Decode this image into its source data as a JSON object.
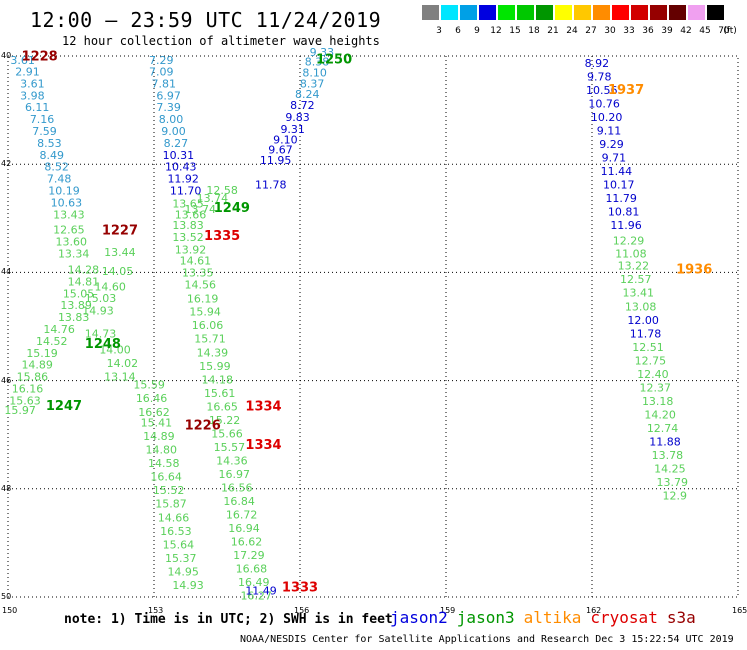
{
  "header": {
    "title": "12:00 — 23:59 UTC 11/24/2019",
    "subtitle": "12 hour collection of altimeter wave heights"
  },
  "legend": {
    "unit": "(ft)",
    "bins": [
      {
        "label": "3",
        "color": "#808080"
      },
      {
        "label": "6",
        "color": "#00e6ff"
      },
      {
        "label": "9",
        "color": "#00a0e6"
      },
      {
        "label": "12",
        "color": "#0000e0"
      },
      {
        "label": "15",
        "color": "#00e600"
      },
      {
        "label": "18",
        "color": "#00c800"
      },
      {
        "label": "21",
        "color": "#009600"
      },
      {
        "label": "24",
        "color": "#ffff00"
      },
      {
        "label": "27",
        "color": "#ffc800"
      },
      {
        "label": "30",
        "color": "#ff8c00"
      },
      {
        "label": "33",
        "color": "#ff0000"
      },
      {
        "label": "36",
        "color": "#d20000"
      },
      {
        "label": "39",
        "color": "#960000"
      },
      {
        "label": "42",
        "color": "#640000"
      },
      {
        "label": "45",
        "color": "#f0a0f0"
      },
      {
        "label": "70",
        "color": "#000000"
      }
    ]
  },
  "axes": {
    "lon_labels": [
      "150",
      "153",
      "156",
      "159",
      "162",
      "165"
    ],
    "lat_labels": [
      "40",
      "42",
      "44",
      "46",
      "48",
      "50"
    ]
  },
  "footer": {
    "note": "note: 1) Time is in UTC; 2) SWH is in feet",
    "satellites": [
      {
        "name": "jason2",
        "color": "#0000dd"
      },
      {
        "name": "jason3",
        "color": "#009600"
      },
      {
        "name": "altika",
        "color": "#ff8c00"
      },
      {
        "name": "cryosat",
        "color": "#dd0000"
      },
      {
        "name": "s3a",
        "color": "#960000"
      }
    ],
    "credit": "NOAA/NESDIS Center for Satellite Applications and Research   Dec  3 15:22:54 UTC 2019"
  },
  "tracks": [
    {
      "color": "#3399cc",
      "points": [
        [
          150.3,
          40.15,
          "3.61"
        ],
        [
          150.4,
          40.36,
          "2.91"
        ],
        [
          150.5,
          40.58,
          "3.61"
        ],
        [
          150.5,
          40.8,
          "3.98"
        ],
        [
          150.6,
          41.02,
          "6.11"
        ],
        [
          150.7,
          41.24,
          "7.16"
        ],
        [
          150.75,
          41.46,
          "7.59"
        ],
        [
          150.85,
          41.68,
          "8.53"
        ],
        [
          150.9,
          41.9,
          "8.49"
        ],
        [
          151.0,
          42.12,
          "8.52"
        ],
        [
          151.05,
          42.34,
          "7.48"
        ],
        [
          151.15,
          42.56,
          "10.19"
        ],
        [
          151.2,
          42.78,
          "10.63"
        ]
      ]
    },
    {
      "color": "#5ad05a",
      "points": [
        [
          151.25,
          43.0,
          "13.43"
        ],
        [
          151.25,
          43.28,
          "12.65"
        ],
        [
          151.3,
          43.5,
          "13.60"
        ],
        [
          151.35,
          43.72,
          "13.34"
        ],
        [
          151.55,
          44.02,
          "14.28"
        ],
        [
          151.55,
          44.24,
          "14.81"
        ],
        [
          151.45,
          44.46,
          "15.05"
        ],
        [
          151.4,
          44.68,
          "13.89"
        ],
        [
          151.35,
          44.9,
          "13.83"
        ],
        [
          151.05,
          45.12,
          "14.76"
        ],
        [
          150.9,
          45.34,
          "14.52"
        ],
        [
          150.7,
          45.56,
          "15.19"
        ],
        [
          150.6,
          45.78,
          "14.89"
        ],
        [
          150.5,
          46.0,
          "15.86"
        ],
        [
          150.4,
          46.22,
          "16.16"
        ],
        [
          150.35,
          46.44,
          "15.63"
        ],
        [
          150.25,
          46.62,
          "15.97"
        ]
      ]
    },
    {
      "color": "#5ad05a",
      "points": [
        [
          152.3,
          43.7,
          "13.44"
        ],
        [
          152.25,
          44.05,
          "14.05"
        ],
        [
          152.1,
          44.33,
          "14.60"
        ],
        [
          151.9,
          44.55,
          "15.03"
        ],
        [
          151.85,
          44.78,
          "14.93"
        ],
        [
          151.9,
          45.2,
          "14.73"
        ],
        [
          152.2,
          45.5,
          "14.00"
        ],
        [
          152.35,
          45.75,
          "14.02"
        ],
        [
          152.3,
          46.0,
          "13.14"
        ]
      ]
    },
    {
      "color": "#3399cc",
      "points": [
        [
          153.15,
          40.15,
          "7.29"
        ],
        [
          153.15,
          40.36,
          "7.09"
        ],
        [
          153.2,
          40.58,
          "7.81"
        ],
        [
          153.3,
          40.8,
          "6.97"
        ],
        [
          153.3,
          41.02,
          "7.39"
        ],
        [
          153.35,
          41.24,
          "8.00"
        ],
        [
          153.4,
          41.46,
          "9.00"
        ],
        [
          153.45,
          41.68,
          "8.27"
        ]
      ]
    },
    {
      "color": "#0000cc",
      "points": [
        [
          153.5,
          41.9,
          "10.31"
        ],
        [
          153.55,
          42.12,
          "10.43"
        ],
        [
          153.6,
          42.34,
          "11.92"
        ],
        [
          153.65,
          42.56,
          "11.70"
        ]
      ]
    },
    {
      "color": "#5ad05a",
      "points": [
        [
          153.7,
          42.8,
          "13.65"
        ],
        [
          153.75,
          43.0,
          "13.66"
        ],
        [
          153.7,
          43.2,
          "13.83"
        ],
        [
          153.7,
          43.42,
          "13.52"
        ],
        [
          153.75,
          43.65,
          "13.92"
        ],
        [
          153.85,
          43.85,
          "14.61"
        ],
        [
          153.9,
          44.08,
          "13.35"
        ],
        [
          153.95,
          44.3,
          "14.56"
        ],
        [
          154.0,
          44.56,
          "16.19"
        ],
        [
          154.05,
          44.8,
          "15.94"
        ],
        [
          154.1,
          45.05,
          "16.06"
        ],
        [
          154.15,
          45.3,
          "15.71"
        ],
        [
          154.2,
          45.55,
          "14.39"
        ],
        [
          154.25,
          45.8,
          "15.99"
        ],
        [
          154.3,
          46.05,
          "14.18"
        ],
        [
          154.35,
          46.3,
          "15.61"
        ],
        [
          154.4,
          46.55,
          "16.65"
        ],
        [
          154.45,
          46.8,
          "15.22"
        ],
        [
          154.5,
          47.05,
          "15.66"
        ],
        [
          154.55,
          47.3,
          "15.57"
        ],
        [
          154.6,
          47.55,
          "14.36"
        ],
        [
          154.65,
          47.8,
          "16.97"
        ],
        [
          154.7,
          48.05,
          "16.56"
        ],
        [
          154.75,
          48.3,
          "16.84"
        ],
        [
          154.8,
          48.55,
          "16.72"
        ],
        [
          154.85,
          48.8,
          "16.94"
        ],
        [
          154.9,
          49.05,
          "16.62"
        ],
        [
          154.95,
          49.3,
          "17.29"
        ],
        [
          155.0,
          49.55,
          "16.68"
        ],
        [
          155.05,
          49.8,
          "16.49"
        ],
        [
          155.1,
          50.05,
          "16.27"
        ]
      ]
    },
    {
      "color": "#5ad05a",
      "points": [
        [
          152.9,
          46.15,
          "15.59"
        ],
        [
          152.95,
          46.4,
          "16.46"
        ],
        [
          153.0,
          46.65,
          "16.62"
        ],
        [
          153.05,
          46.85,
          "15.41"
        ],
        [
          153.1,
          47.1,
          "14.89"
        ],
        [
          153.15,
          47.35,
          "14.80"
        ],
        [
          153.2,
          47.6,
          "14.58"
        ],
        [
          153.25,
          47.85,
          "16.64"
        ],
        [
          153.3,
          48.1,
          "15.52"
        ],
        [
          153.35,
          48.35,
          "15.87"
        ],
        [
          153.4,
          48.6,
          "14.66"
        ],
        [
          153.45,
          48.85,
          "16.53"
        ],
        [
          153.5,
          49.1,
          "15.64"
        ],
        [
          153.55,
          49.35,
          "15.37"
        ],
        [
          153.6,
          49.6,
          "14.95"
        ],
        [
          153.7,
          49.85,
          "14.93"
        ]
      ]
    },
    {
      "color": "#0000cc",
      "points": [
        [
          155.2,
          49.95,
          "11.49"
        ]
      ]
    },
    {
      "color": "#5ad05a",
      "points": [
        [
          154.4,
          42.55,
          "12.58"
        ],
        [
          154.2,
          42.7,
          "13.74"
        ],
        [
          153.95,
          42.9,
          "13.74"
        ]
      ]
    },
    {
      "color": "#0000cc",
      "points": [
        [
          155.4,
          42.45,
          "11.78"
        ],
        [
          155.5,
          42.0,
          "11.95"
        ],
        [
          155.6,
          41.8,
          "9.67"
        ],
        [
          155.7,
          41.62,
          "9.10"
        ],
        [
          155.85,
          41.42,
          "9.31"
        ],
        [
          155.95,
          41.2,
          "9.83"
        ],
        [
          156.05,
          40.98,
          "8.72"
        ]
      ]
    },
    {
      "color": "#3399cc",
      "points": [
        [
          156.15,
          40.78,
          "8.24"
        ],
        [
          156.25,
          40.58,
          "8.37"
        ],
        [
          156.3,
          40.38,
          "8.10"
        ],
        [
          156.35,
          40.18,
          "8.38"
        ],
        [
          156.45,
          40.0,
          "9.33"
        ]
      ]
    },
    {
      "color": "#0000cc",
      "points": [
        [
          162.1,
          40.2,
          "8.92"
        ],
        [
          162.15,
          40.45,
          "9.78"
        ],
        [
          162.2,
          40.7,
          "10.56"
        ],
        [
          162.25,
          40.95,
          "10.76"
        ],
        [
          162.3,
          41.2,
          "10.20"
        ],
        [
          162.35,
          41.45,
          "9.11"
        ],
        [
          162.4,
          41.7,
          "9.29"
        ],
        [
          162.45,
          41.95,
          "9.71"
        ],
        [
          162.5,
          42.2,
          "11.44"
        ],
        [
          162.55,
          42.45,
          "10.17"
        ],
        [
          162.6,
          42.7,
          "11.79"
        ],
        [
          162.65,
          42.95,
          "10.81"
        ],
        [
          162.7,
          43.2,
          "11.96"
        ]
      ]
    },
    {
      "color": "#5ad05a",
      "points": [
        [
          162.75,
          43.48,
          "12.29"
        ],
        [
          162.8,
          43.72,
          "11.08"
        ],
        [
          162.85,
          43.95,
          "13.22"
        ],
        [
          162.9,
          44.2,
          "12.57"
        ],
        [
          162.95,
          44.45,
          "13.41"
        ],
        [
          163.0,
          44.7,
          "13.08"
        ]
      ]
    },
    {
      "color": "#0000cc",
      "points": [
        [
          163.05,
          44.95,
          "12.00"
        ],
        [
          163.1,
          45.2,
          "11.78"
        ]
      ]
    },
    {
      "color": "#5ad05a",
      "points": [
        [
          163.15,
          45.45,
          "12.51"
        ],
        [
          163.2,
          45.7,
          "12.75"
        ],
        [
          163.25,
          45.95,
          "12.40"
        ],
        [
          163.3,
          46.2,
          "12.37"
        ],
        [
          163.35,
          46.45,
          "13.18"
        ],
        [
          163.4,
          46.7,
          "14.20"
        ],
        [
          163.45,
          46.95,
          "12.74"
        ]
      ]
    },
    {
      "color": "#0000cc",
      "points": [
        [
          163.5,
          47.2,
          "11.88"
        ]
      ]
    },
    {
      "color": "#5ad05a",
      "points": [
        [
          163.55,
          47.45,
          "13.78"
        ],
        [
          163.6,
          47.7,
          "14.25"
        ],
        [
          163.65,
          47.95,
          "13.79"
        ],
        [
          163.7,
          48.2,
          "12.9"
        ]
      ]
    }
  ],
  "times": [
    {
      "label": "1228",
      "lon": 150.65,
      "lat": 40.08,
      "color": "#960000"
    },
    {
      "label": "1250",
      "lon": 156.7,
      "lat": 40.14,
      "color": "#009600"
    },
    {
      "label": "1937",
      "lon": 162.7,
      "lat": 40.7,
      "color": "#ff8c00"
    },
    {
      "label": "1249",
      "lon": 154.6,
      "lat": 42.88,
      "color": "#009600"
    },
    {
      "label": "1227",
      "lon": 152.3,
      "lat": 43.3,
      "color": "#960000"
    },
    {
      "label": "1335",
      "lon": 154.4,
      "lat": 43.4,
      "color": "#dd0000"
    },
    {
      "label": "1936",
      "lon": 164.1,
      "lat": 44.02,
      "color": "#ff8c00"
    },
    {
      "label": "1248",
      "lon": 151.95,
      "lat": 45.4,
      "color": "#009600"
    },
    {
      "label": "1247",
      "lon": 151.15,
      "lat": 46.54,
      "color": "#009600"
    },
    {
      "label": "1334",
      "lon": 155.25,
      "lat": 46.55,
      "color": "#dd0000"
    },
    {
      "label": "1226",
      "lon": 154.0,
      "lat": 46.9,
      "color": "#960000"
    },
    {
      "label": "1334",
      "lon": 155.25,
      "lat": 47.26,
      "color": "#dd0000"
    },
    {
      "label": "1333",
      "lon": 156.0,
      "lat": 49.9,
      "color": "#dd0000"
    }
  ]
}
